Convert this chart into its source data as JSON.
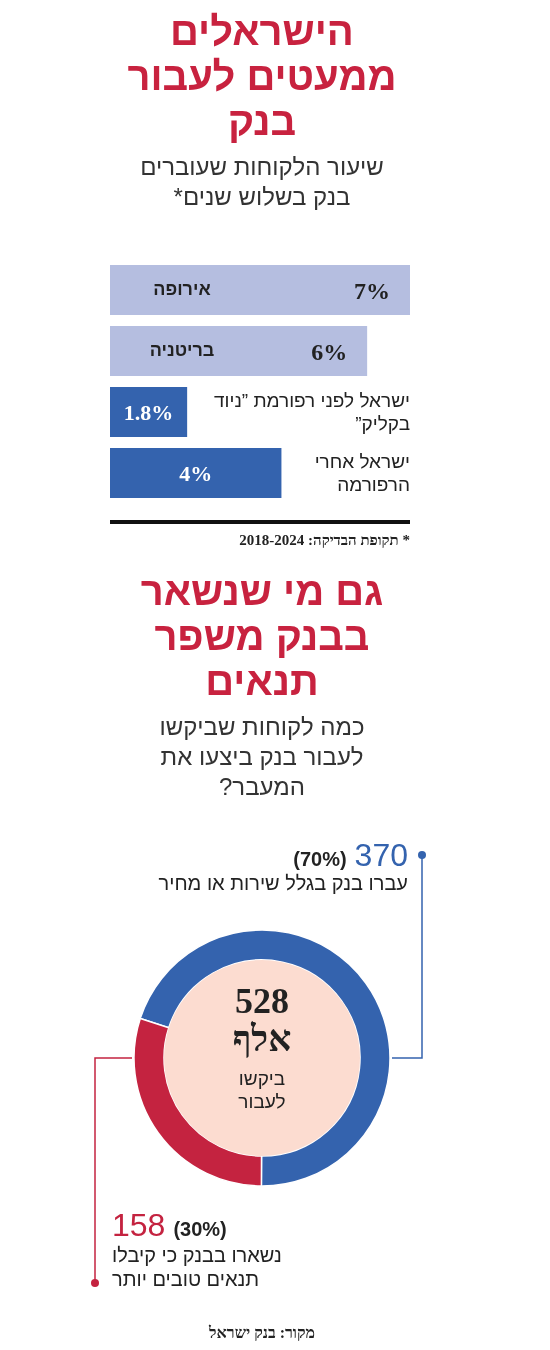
{
  "chart_data": [
    {
      "type": "bar",
      "orientation": "horizontal",
      "title": "הישראלים ממעטים לעבור בנק",
      "subtitle": "שיעור הלקוחות שעוברים בנק בשלוש שנים*",
      "categories": [
        "אירופה",
        "בריטניה",
        "ישראל לפני רפורמת ”ניוד בקליק”",
        "ישראל אחרי הרפורמה"
      ],
      "values": [
        7,
        6,
        1.8,
        4
      ],
      "colors": [
        "#b5bee0",
        "#b5bee0",
        "#3463ae",
        "#3463ae"
      ],
      "value_labels": [
        "7%",
        "6%",
        "1.8%",
        "4%"
      ],
      "annotations": [
        "* תקופת הבדיקה: 2018-2024"
      ]
    },
    {
      "type": "donut",
      "title": "גם מי שנשאר בבנק משפר תנאים",
      "subtitle": "כמה לקוחות שביקשו לעבור בנק ביצעו את המעבר?",
      "categories": [
        "עברו בנק בגלל שירות או מחיר",
        "נשארו בבנק כי קיבלו תנאים טובים יותר"
      ],
      "values": [
        370,
        158
      ],
      "colors": [
        "#3463ae",
        "#c42340"
      ],
      "data_labels": true,
      "annotations": [
        "528 אלף",
        "ביקשו לעבור",
        "(70%)",
        "(30%)",
        "מקור: בנק ישראל"
      ]
    }
  ]
}
